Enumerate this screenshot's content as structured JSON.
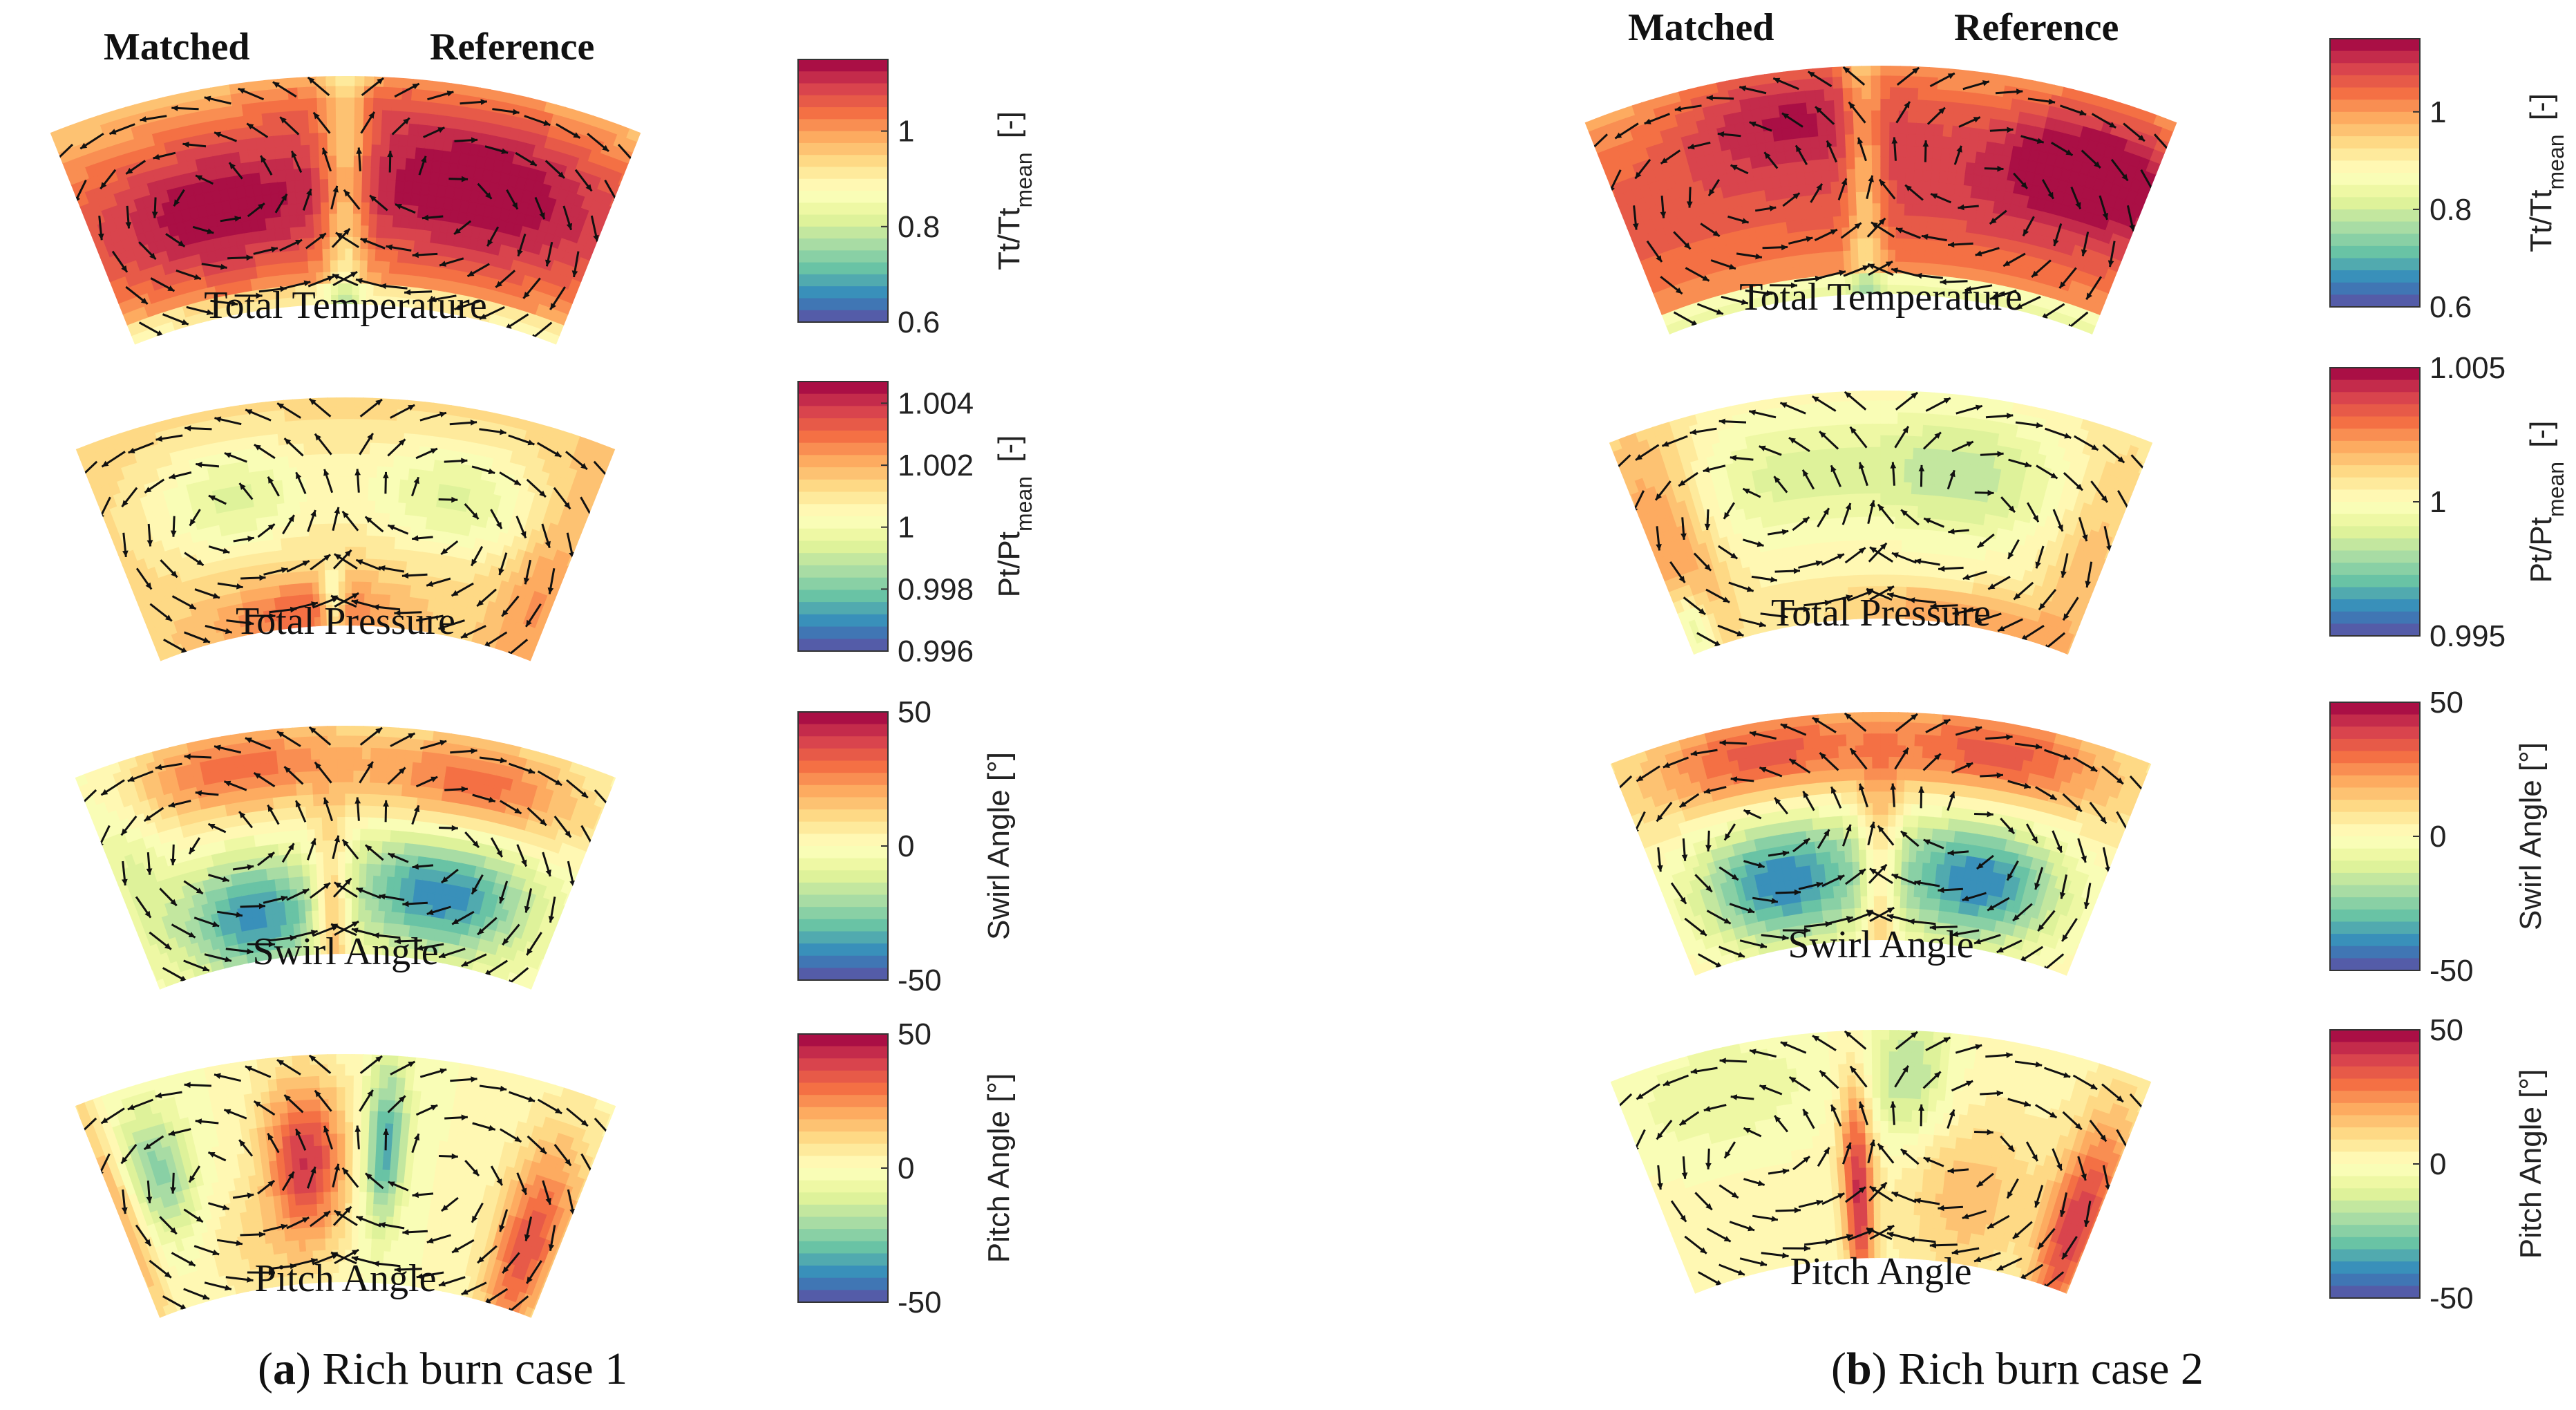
{
  "figure": {
    "headers": {
      "matched": "Matched",
      "reference": "Reference"
    }
  },
  "chart_data": [
    {
      "id": "case1",
      "caption_letter": "a",
      "caption_text": "Rich burn case 1",
      "type": "heatmap",
      "panels": [
        {
          "title": "Total Temperature",
          "colorbar_label_main": "Tt/Tt",
          "colorbar_label_sub": "mean",
          "colorbar_label_unit": "[-]",
          "range": [
            0.6,
            1.15
          ],
          "ticks": [
            "1",
            "0.8",
            "0.6"
          ],
          "tick_values": [
            1,
            0.8,
            0.6
          ],
          "field": "temp1"
        },
        {
          "title": "Total Pressure",
          "colorbar_label_main": "Pt/Pt",
          "colorbar_label_sub": "mean",
          "colorbar_label_unit": "[-]",
          "range": [
            0.996,
            1.0047
          ],
          "ticks": [
            "1.004",
            "1.002",
            "1",
            "0.998",
            "0.996"
          ],
          "tick_values": [
            1.004,
            1.002,
            1,
            0.998,
            0.996
          ],
          "field": "press1"
        },
        {
          "title": "Swirl Angle",
          "colorbar_label_main": "Swirl Angle [°]",
          "colorbar_label_sub": "",
          "colorbar_label_unit": "",
          "range": [
            -50,
            50
          ],
          "ticks": [
            "50",
            "0",
            "-50"
          ],
          "tick_values": [
            50,
            0,
            -50
          ],
          "field": "swirl1"
        },
        {
          "title": "Pitch Angle",
          "colorbar_label_main": "Pitch Angle [°]",
          "colorbar_label_sub": "",
          "colorbar_label_unit": "",
          "range": [
            -50,
            50
          ],
          "ticks": [
            "50",
            "0",
            "-50"
          ],
          "tick_values": [
            50,
            0,
            -50
          ],
          "field": "pitch1"
        }
      ]
    },
    {
      "id": "case2",
      "caption_letter": "b",
      "caption_text": "Rich burn case 2",
      "type": "heatmap",
      "panels": [
        {
          "title": "Total Temperature",
          "colorbar_label_main": "Tt/Tt",
          "colorbar_label_sub": "mean",
          "colorbar_label_unit": "[-]",
          "range": [
            0.6,
            1.15
          ],
          "ticks": [
            "1",
            "0.8",
            "0.6"
          ],
          "tick_values": [
            1,
            0.8,
            0.6
          ],
          "field": "temp2"
        },
        {
          "title": "Total Pressure",
          "colorbar_label_main": "Pt/Pt",
          "colorbar_label_sub": "mean",
          "colorbar_label_unit": "[-]",
          "range": [
            0.995,
            1.005
          ],
          "ticks": [
            "1.005",
            "1",
            "0.995"
          ],
          "tick_values": [
            1.005,
            1,
            0.995
          ],
          "field": "press2"
        },
        {
          "title": "Swirl Angle",
          "colorbar_label_main": "Swirl Angle [°]",
          "colorbar_label_sub": "",
          "colorbar_label_unit": "",
          "range": [
            -50,
            50
          ],
          "ticks": [
            "50",
            "0",
            "-50"
          ],
          "tick_values": [
            50,
            0,
            -50
          ],
          "field": "swirl2"
        },
        {
          "title": "Pitch Angle",
          "colorbar_label_main": "Pitch Angle [°]",
          "colorbar_label_sub": "",
          "colorbar_label_unit": "",
          "range": [
            -50,
            50
          ],
          "ticks": [
            "50",
            "0",
            "-50"
          ],
          "tick_values": [
            50,
            0,
            -50
          ],
          "field": "pitch2"
        }
      ]
    }
  ],
  "colormap": [
    "#5e4fa2",
    "#3288bd",
    "#66c2a5",
    "#abdda4",
    "#e6f598",
    "#ffffbf",
    "#fee08b",
    "#fdae61",
    "#f46d43",
    "#d53e4f",
    "#9e0142"
  ]
}
